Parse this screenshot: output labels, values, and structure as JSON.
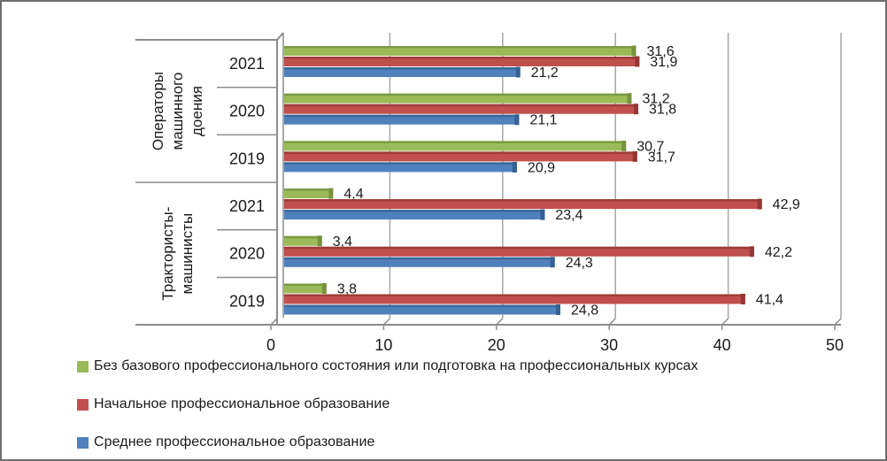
{
  "chart_data": {
    "type": "bar",
    "orientation": "horizontal",
    "title": "",
    "xlabel": "",
    "ylabel": "",
    "x_axis": {
      "min": 0,
      "max": 50,
      "tick_labels": [
        "0",
        "10",
        "20",
        "30",
        "40",
        "50"
      ],
      "tick_values": [
        0,
        10,
        20,
        30,
        40,
        50
      ]
    },
    "grid": "vertical-on",
    "legend_position": "bottom-left",
    "value_label_decimal_separator": ",",
    "categories": [
      {
        "group": "Операторы машинного доения",
        "group_lines": [
          "Операторы",
          "машинного",
          "доения"
        ],
        "years": [
          "2021",
          "2020",
          "2019"
        ]
      },
      {
        "group": "Трактористы-машинисты",
        "group_lines": [
          "Трактористы-",
          "машинисты"
        ],
        "years": [
          "2021",
          "2020",
          "2019"
        ]
      }
    ],
    "series": [
      {
        "name": "Без базового профессионального состояния или подготовка на профессиональных курсах",
        "color": "#9bbb59",
        "color_dark": "#77923d",
        "values": [
          [
            31.6,
            31.2,
            30.7
          ],
          [
            4.4,
            3.4,
            3.8
          ]
        ]
      },
      {
        "name": "Начальное профессиональное образование",
        "color": "#c0504d",
        "color_dark": "#953735",
        "values": [
          [
            31.9,
            31.8,
            31.7
          ],
          [
            42.9,
            42.2,
            41.4
          ]
        ]
      },
      {
        "name": "Среднее профессиональное образование",
        "color": "#4f81bd",
        "color_dark": "#366092",
        "values": [
          [
            21.2,
            21.1,
            20.9
          ],
          [
            23.4,
            24.3,
            24.8
          ]
        ]
      }
    ],
    "colors": {
      "axis": "#8c8c8c",
      "gridline": "#a6a6a6",
      "text": "#1a1a1a"
    }
  }
}
